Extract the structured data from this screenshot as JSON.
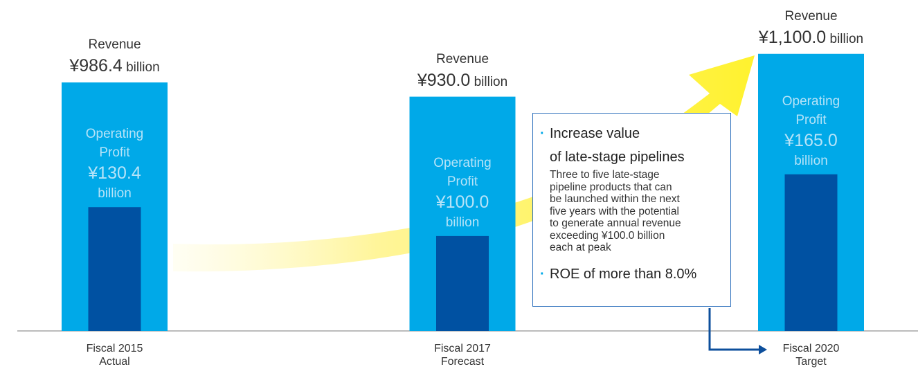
{
  "chart_data": {
    "type": "bar",
    "categories": [
      "Fiscal 2015",
      "Fiscal 2017",
      "Fiscal 2020"
    ],
    "category_sublabels": [
      "Actual",
      "Forecast",
      "Target"
    ],
    "unit": "billion",
    "ylim": [
      0,
      1300
    ],
    "y2lim": [
      0,
      345
    ],
    "series": [
      {
        "name": "Revenue",
        "color": "#00a9e8",
        "values": [
          986.4,
          930.0,
          1100.0
        ],
        "value_labels": [
          "¥986.4",
          "¥930.0",
          "¥1,100.0"
        ]
      },
      {
        "name": "Operating Profit",
        "color": "#0051a2",
        "axis": "y2",
        "values": [
          130.4,
          100.0,
          165.0
        ],
        "value_labels": [
          "¥130.4",
          "¥100.0",
          "¥165.0"
        ]
      }
    ],
    "annotation": {
      "items": [
        {
          "title_lines": [
            "Increase value",
            "of late-stage pipelines"
          ],
          "body_lines": [
            "Three to five late-stage",
            "pipeline products that can",
            "be launched within the next",
            "five years with the potential",
            "to generate annual revenue",
            "exceeding ¥100.0 billion",
            "each at peak"
          ]
        },
        {
          "title_lines": [
            "ROE of more than 8.0%"
          ]
        }
      ]
    }
  }
}
